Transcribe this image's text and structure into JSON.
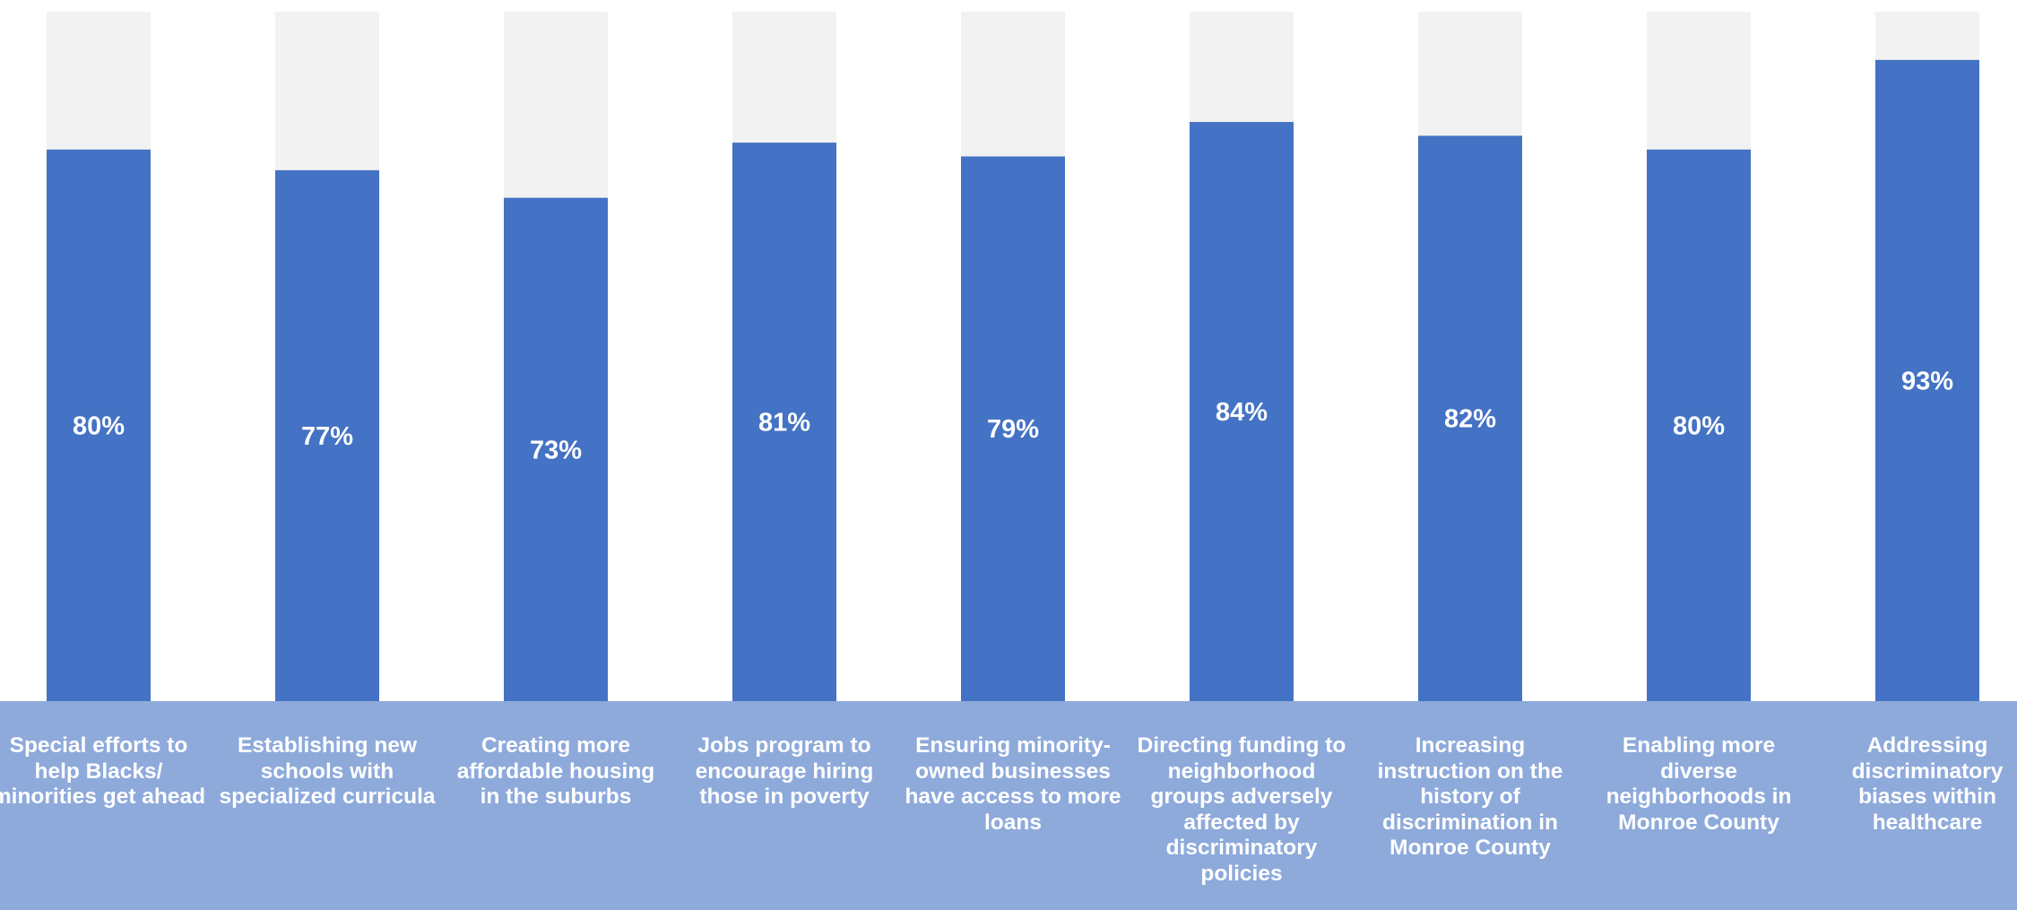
{
  "chart_data": {
    "type": "bar",
    "stacked": true,
    "categories": [
      "Special efforts to help Blacks/ minorities get ahead",
      "Establishing new schools with specialized curricula",
      "Creating more affordable housing in the suburbs",
      "Jobs program to encourage hiring those in poverty",
      "Ensuring minority-owned businesses have access to more loans",
      "Directing funding to neighborhood groups adversely affected by discriminatory policies",
      "Increasing instruction on the history of discrimination in Monroe County",
      "Enabling more diverse neighborhoods in Monroe County",
      "Addressing discriminatory biases within healthcare"
    ],
    "values": [
      80,
      77,
      73,
      81,
      79,
      84,
      82,
      80,
      93
    ],
    "value_labels": [
      "80%",
      "77%",
      "73%",
      "81%",
      "79%",
      "84%",
      "82%",
      "80%",
      "93%"
    ],
    "remainder_max": 100,
    "ylim": [
      0,
      100
    ],
    "title": "",
    "xlabel": "",
    "ylabel": "",
    "grid": false,
    "legend": "none",
    "colors": {
      "bar": "#4472c4",
      "remainder": "#f2f2f2",
      "category_band": "#8eaadb",
      "value_text": "#ffffff",
      "category_text": "#ffffff"
    }
  }
}
